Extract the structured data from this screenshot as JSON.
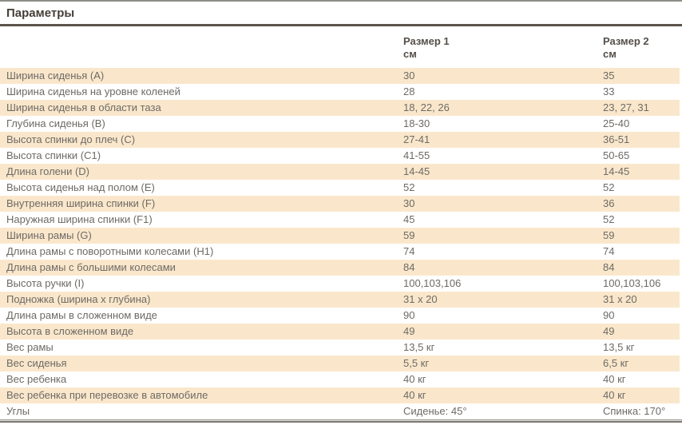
{
  "page": {
    "title": "Параметры"
  },
  "colors": {
    "stripe": "#fae7cb",
    "title_text": "#453f38",
    "row_text": "#6d6a66",
    "header_text": "#554f48",
    "title_rule": "#5c554c",
    "top_rule": "#8e8e89"
  },
  "table": {
    "columns": [
      {
        "label": "Размер 1",
        "unit": "см"
      },
      {
        "label": "Размер 2",
        "unit": "см"
      }
    ],
    "rows": [
      {
        "name": "Ширина сиденья (А)",
        "size1": "30",
        "size2": "35"
      },
      {
        "name": "Ширина сиденья на уровне коленей",
        "size1": "28",
        "size2": "33"
      },
      {
        "name": "Ширина сиденья в области таза",
        "size1": "18, 22, 26",
        "size2": "23, 27, 31"
      },
      {
        "name": "Глубина сиденья (В)",
        "size1": "18-30",
        "size2": "25-40"
      },
      {
        "name": "Высота спинки до плеч (С)",
        "size1": "27-41",
        "size2": "36-51"
      },
      {
        "name": "Высота спинки (С1)",
        "size1": "41-55",
        "size2": "50-65"
      },
      {
        "name": "Длина голени (D)",
        "size1": "14-45",
        "size2": "14-45"
      },
      {
        "name": "Высота сиденья над полом (E)",
        "size1": "52",
        "size2": "52"
      },
      {
        "name": "Внутренняя ширина спинки (F)",
        "size1": "30",
        "size2": "36"
      },
      {
        "name": "Наружная ширина спинки (F1)",
        "size1": "45",
        "size2": "52"
      },
      {
        "name": "Ширина рамы (G)",
        "size1": "59",
        "size2": "59"
      },
      {
        "name": "Длина рамы с поворотными колесами (H1)",
        "size1": "74",
        "size2": "74"
      },
      {
        "name": "Длина рамы с большими колесами",
        "size1": "84",
        "size2": "84"
      },
      {
        "name": "Высота ручки (I)",
        "size1": "100,103,106",
        "size2": "100,103,106"
      },
      {
        "name": "Подножка (ширина х глубина)",
        "size1": "31 х 20",
        "size2": "31 х 20"
      },
      {
        "name": "Длина рамы в сложенном виде",
        "size1": "90",
        "size2": "90"
      },
      {
        "name": "Высота в сложенном виде",
        "size1": "49",
        "size2": "49"
      },
      {
        "name": "Вес рамы",
        "size1": "13,5 кг",
        "size2": "13,5 кг"
      },
      {
        "name": "Вес сиденья",
        "size1": "5,5 кг",
        "size2": "6,5 кг"
      },
      {
        "name": "Вес ребенка",
        "size1": "40 кг",
        "size2": "40 кг"
      },
      {
        "name": "Вес ребенка при перевозке в автомобиле",
        "size1": "40 кг",
        "size2": "40 кг"
      },
      {
        "name": "Углы",
        "size1": "Сиденье: 45°",
        "size2": "Спинка: 170°"
      }
    ]
  }
}
